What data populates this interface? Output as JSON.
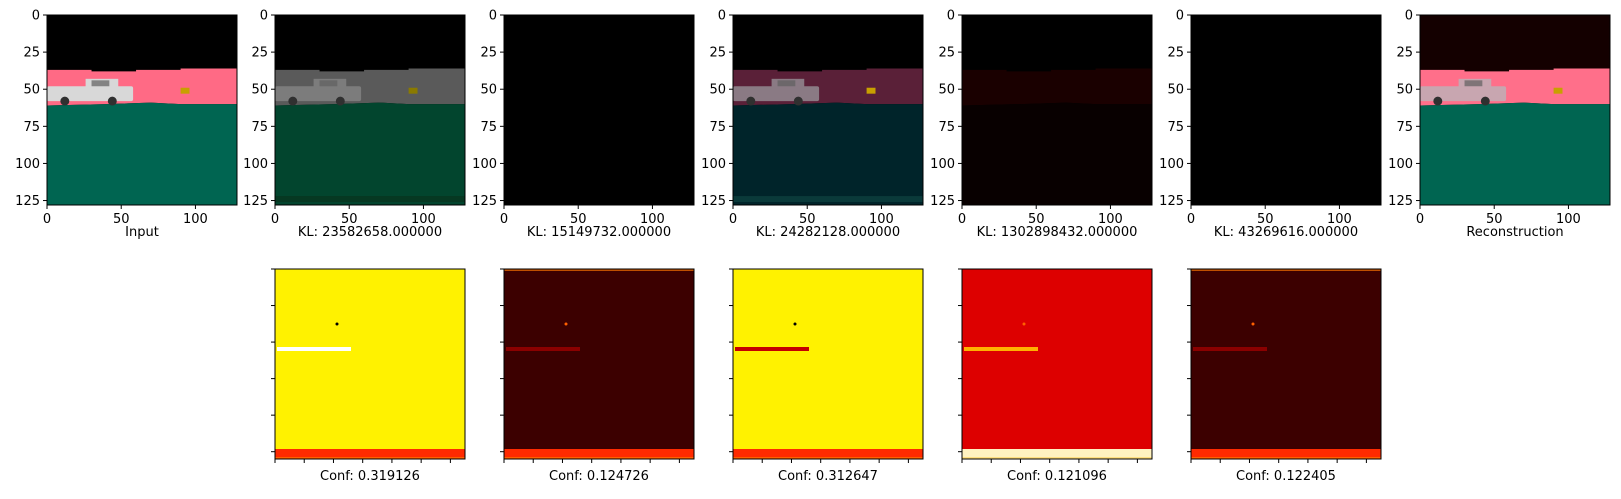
{
  "top_row": [
    {
      "caption": "Input",
      "kind": "input"
    },
    {
      "caption": "KL: 23582658.000000",
      "kind": "gray"
    },
    {
      "caption": "KL: 15149732.000000",
      "kind": "black"
    },
    {
      "caption": "KL: 24282128.000000",
      "kind": "tint"
    },
    {
      "caption": "KL: 1302898432.000000",
      "kind": "dark"
    },
    {
      "caption": "KL: 43269616.000000",
      "kind": "black"
    },
    {
      "caption": "Reconstruction",
      "kind": "recon"
    }
  ],
  "bottom_row": [
    {
      "caption": "Conf: 0.319126",
      "level": "high"
    },
    {
      "caption": "Conf: 0.124726",
      "level": "low"
    },
    {
      "caption": "Conf: 0.312647",
      "level": "high"
    },
    {
      "caption": "Conf: 0.121096",
      "level": "mid"
    },
    {
      "caption": "Conf: 0.122405",
      "level": "low"
    }
  ],
  "axes": {
    "x_ticks": [
      "0",
      "50",
      "100"
    ],
    "y_ticks": [
      "0",
      "25",
      "50",
      "75",
      "100",
      "125"
    ]
  },
  "colors": {
    "sky": "#000000",
    "pink": "#ff6a85",
    "ground": "#006551",
    "heat_high": "#fff200",
    "heat_mid": "#dd0000",
    "heat_low": "#3c0000",
    "stripe": "#ff2a00"
  }
}
